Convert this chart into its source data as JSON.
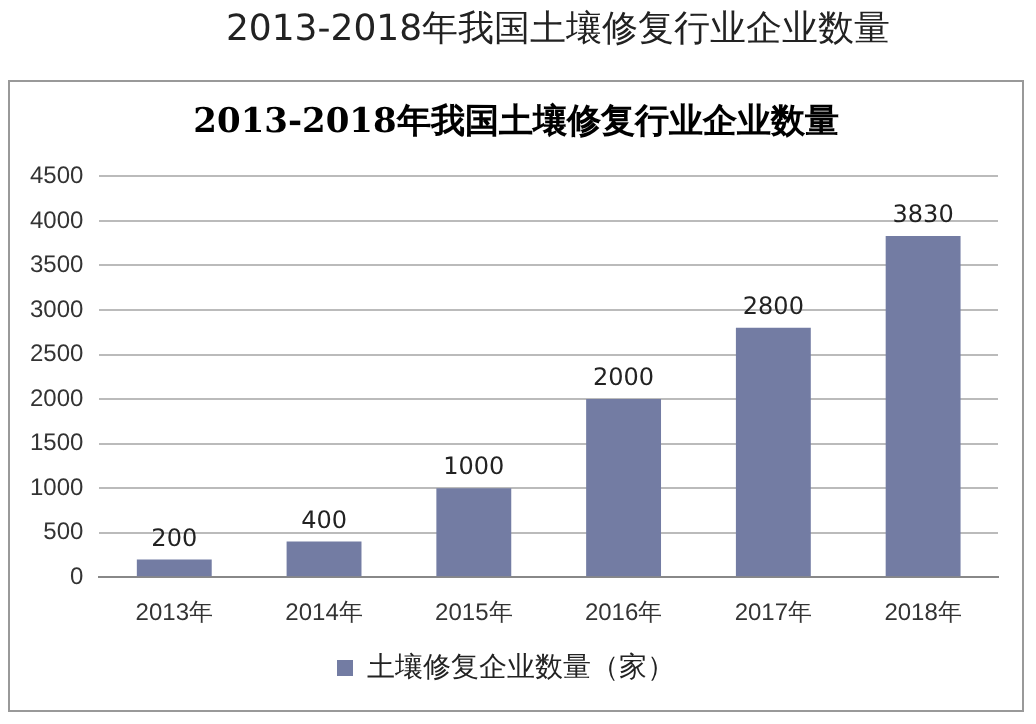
{
  "chart_data": {
    "type": "bar",
    "title": "2013-2018年我国土壤修复行业企业数量",
    "subtitle": "2013-2018年我国土壤修复行业企业数量",
    "categories": [
      "2013年",
      "2014年",
      "2015年",
      "2016年",
      "2017年",
      "2018年"
    ],
    "series": [
      {
        "name": "土壤修复企业数量（家）",
        "color": "#737ca3",
        "values": [
          200,
          400,
          1000,
          2000,
          2800,
          3830
        ]
      }
    ],
    "ylim": [
      0,
      4500
    ],
    "yticks": [
      0,
      500,
      1000,
      1500,
      2000,
      2500,
      3000,
      3500,
      4000,
      4500
    ],
    "grid": "y",
    "legend": "bottom",
    "data_labels": true
  }
}
